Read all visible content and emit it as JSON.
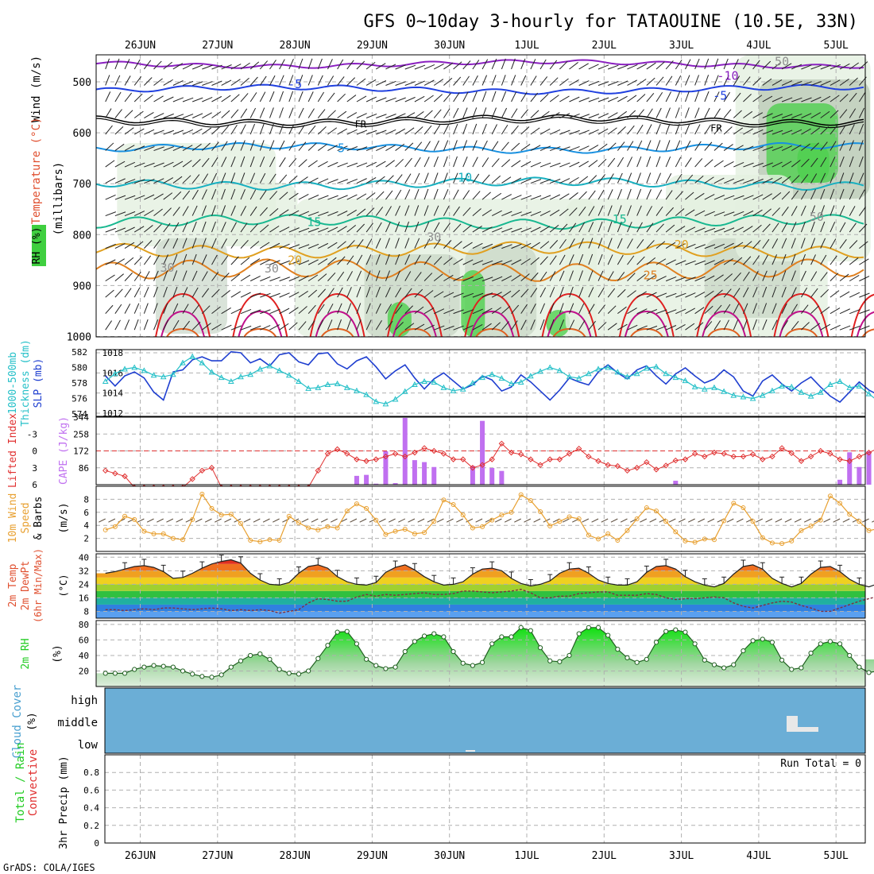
{
  "title": "GFS 0~10day 3-hourly for TATAOUINE (10.5E, 33N)",
  "credit": "GrADS: COLA/IGES",
  "dates": [
    "26JUN",
    "27JUN",
    "28JUN",
    "29JUN",
    "30JUN",
    "1JUL",
    "2JUL",
    "3JUL",
    "4JUL",
    "5JUL"
  ],
  "colors": {
    "panel_bg": "#ffffff",
    "cloud_bg": "#6baed6",
    "grid": "#b0b0b0",
    "slp": "#1f3fd0",
    "thickness": "#25c0c8",
    "lifted": "#e03030",
    "cape": "#c070f0",
    "wind10": "#e8a030",
    "rh": "#22cc22"
  },
  "chart_data": [
    {
      "type": "heatmap",
      "name": "upper_air",
      "ylabel_wind": "Wind (m/s)",
      "ylabel_temp": "Temperature (°C)",
      "ylabel_rh": "RH (%)",
      "ylabel_p": "(millibars)",
      "ylim": [
        1000,
        450
      ],
      "yticks": [
        500,
        600,
        700,
        800,
        900,
        1000
      ],
      "isotherm_labels": [
        {
          "text": "-10",
          "x": 7.6,
          "p": 488,
          "color": "#8a20c0"
        },
        {
          "text": "-5",
          "x": 2.0,
          "p": 505,
          "color": "#2040e0"
        },
        {
          "text": "-5",
          "x": 7.5,
          "p": 527,
          "color": "#2040e0"
        },
        {
          "text": "FR",
          "x": 2.85,
          "p": 582,
          "color": "#000000"
        },
        {
          "text": "FR",
          "x": 7.45,
          "p": 590,
          "color": "#000000"
        },
        {
          "text": "5",
          "x": 2.6,
          "p": 630,
          "color": "#1890e0"
        },
        {
          "text": "10",
          "x": 4.2,
          "p": 688,
          "color": "#18b0c0"
        },
        {
          "text": "15",
          "x": 2.25,
          "p": 775,
          "color": "#18b890"
        },
        {
          "text": "15",
          "x": 6.2,
          "p": 770,
          "color": "#18b890"
        },
        {
          "text": "20",
          "x": 2.0,
          "p": 850,
          "color": "#e0a020"
        },
        {
          "text": "20",
          "x": 7.0,
          "p": 820,
          "color": "#e0a020"
        },
        {
          "text": "25",
          "x": 6.6,
          "p": 880,
          "color": "#e08020"
        },
        {
          "text": "30",
          "x": 0.35,
          "p": 865,
          "color": "#909090"
        },
        {
          "text": "30",
          "x": 1.7,
          "p": 867,
          "color": "#909090"
        },
        {
          "text": "30",
          "x": 3.8,
          "p": 805,
          "color": "#909090"
        },
        {
          "text": "50",
          "x": 8.3,
          "p": 460,
          "color": "#909090"
        },
        {
          "text": "50",
          "x": 8.75,
          "p": 765,
          "color": "#909090"
        }
      ]
    },
    {
      "type": "line",
      "name": "thickness_slp",
      "ylabel_left": "1000-500mb Thickness (dm)",
      "ylabel_right": "SLP (mb)",
      "ylim_left": [
        574,
        582
      ],
      "ylim_right": [
        1012,
        1018
      ],
      "yticks_left": [
        574,
        576,
        578,
        580,
        582
      ],
      "yticks_right": [
        1012,
        1014,
        1016,
        1018
      ],
      "series": [
        {
          "name": "SLP",
          "axis": "right",
          "values": [
            1015.7,
            1014.7,
            1015.7,
            1016.1,
            1015.5,
            1014.1,
            1013.3,
            1016.1,
            1016.3,
            1017.3,
            1017.6,
            1017.2,
            1017.2,
            1018.1,
            1018.0,
            1017.0,
            1017.4,
            1016.7,
            1017.8,
            1018.0,
            1017.1,
            1016.8,
            1017.9,
            1018.0,
            1016.9,
            1016.4,
            1017.2,
            1017.6,
            1016.6,
            1015.4,
            1016.2,
            1016.8,
            1015.5,
            1014.4,
            1015.4,
            1016.0,
            1015.2,
            1014.4,
            1014.8,
            1015.7,
            1015.3,
            1014.2,
            1014.6,
            1015.8,
            1015.1,
            1014.2,
            1013.3,
            1014.3,
            1015.5,
            1015.1,
            1014.8,
            1016.1,
            1016.8,
            1016.0,
            1015.4,
            1016.3,
            1016.7,
            1015.7,
            1014.9,
            1015.9,
            1016.5,
            1015.7,
            1015.0,
            1015.4,
            1016.3,
            1015.6,
            1014.2,
            1013.7,
            1015.2,
            1015.8,
            1014.9,
            1014.2,
            1015.0,
            1015.6,
            1014.6,
            1013.7,
            1013.1,
            1014.1,
            1015.1,
            1014.3,
            1013.8,
            1014.9
          ]
        },
        {
          "name": "Thickness",
          "axis": "left",
          "values": [
            578.2,
            579.2,
            579.8,
            580.0,
            579.6,
            579.0,
            578.8,
            579.1,
            580.6,
            581.4,
            580.6,
            579.4,
            578.7,
            578.2,
            578.8,
            579.1,
            579.8,
            580.2,
            579.6,
            579.0,
            578.2,
            577.3,
            577.4,
            577.8,
            577.9,
            577.4,
            577.0,
            576.5,
            575.6,
            575.3,
            575.9,
            576.9,
            577.8,
            578.2,
            578.1,
            577.4,
            577.0,
            577.2,
            578.0,
            578.7,
            579.1,
            578.6,
            577.9,
            578.1,
            578.9,
            579.5,
            580.0,
            579.6,
            578.8,
            578.6,
            579.2,
            579.8,
            580.0,
            579.4,
            578.8,
            579.2,
            579.9,
            580.1,
            579.2,
            578.7,
            578.3,
            577.5,
            577.2,
            577.4,
            576.9,
            576.4,
            576.2,
            576.0,
            576.4,
            577.0,
            577.6,
            577.5,
            576.8,
            576.3,
            576.8,
            577.8,
            578.2,
            577.4,
            577.6,
            576.6,
            575.6,
            574.8
          ]
        }
      ]
    },
    {
      "type": "bar",
      "name": "cape_li",
      "ylabel_left": "Lifted Index",
      "ylabel_right": "CAPE (J/kg)",
      "yticks_left": [
        -3,
        0,
        3,
        6
      ],
      "ylim_left": [
        6,
        -6
      ],
      "yticks_right": [
        86,
        172,
        258,
        344
      ],
      "ylim_right": [
        0,
        344
      ],
      "series": [
        {
          "name": "Lifted Index",
          "values": [
            3.5,
            4.0,
            4.5,
            8,
            8,
            8,
            8,
            8,
            8,
            5.0,
            3.5,
            3.0,
            8,
            8,
            8,
            8,
            8,
            8,
            8,
            8,
            8,
            8,
            8,
            8,
            8,
            8,
            8,
            8,
            8,
            8,
            8,
            8,
            8,
            8,
            8,
            8,
            8,
            8,
            8,
            8,
            8,
            8,
            8,
            8,
            8,
            8,
            8,
            8,
            8,
            8,
            8,
            8,
            8,
            8,
            8,
            8,
            8,
            8,
            8,
            8,
            8,
            8,
            8,
            8,
            8,
            8,
            8,
            8,
            8,
            8,
            8,
            8,
            8,
            8,
            8,
            8,
            8,
            8,
            8,
            8,
            8,
            8
          ]
        },
        {
          "name": "CAPE",
          "values": [
            0,
            0,
            0,
            0,
            0,
            0,
            0,
            0,
            0,
            0,
            0,
            0,
            0,
            0,
            0,
            0,
            0,
            0,
            0,
            0,
            0,
            0,
            0,
            0,
            0,
            0,
            0,
            0,
            0,
            0,
            0,
            0,
            0,
            0,
            0,
            0,
            0,
            0,
            0,
            0,
            0,
            0,
            0,
            0,
            0,
            0,
            0,
            0,
            0,
            0,
            0,
            0,
            0,
            0,
            0,
            0,
            0,
            0,
            0,
            0,
            0,
            0,
            0,
            0,
            0,
            0,
            0,
            0,
            0,
            0,
            0,
            0,
            0,
            0,
            0,
            0,
            0,
            0,
            0,
            0,
            0,
            0
          ]
        }
      ]
    },
    {
      "type": "line",
      "name": "wind10m",
      "ylabel": "10m Wind Speed (m/s) & Barbs",
      "ylim": [
        0,
        10
      ],
      "yticks": [
        2,
        4,
        6,
        8
      ],
      "series": [
        {
          "name": "10m Wind Speed",
          "values": [
            3.3,
            3.8,
            5.4,
            4.9,
            3.1,
            2.7,
            2.7,
            2.0,
            1.8,
            4.9,
            8.8,
            6.6,
            5.6,
            5.7,
            4.3,
            1.7,
            1.5,
            1.8,
            1.7,
            5.4,
            4.4,
            3.6,
            3.3,
            3.8,
            3.6,
            6.2,
            7.3,
            6.6,
            4.8,
            2.6,
            3.1,
            3.4,
            2.7,
            2.9,
            4.6,
            7.9,
            7.2,
            5.6,
            3.6,
            3.8,
            4.8,
            5.6,
            6.0,
            8.7,
            7.8,
            6.1,
            3.9,
            4.6,
            5.3,
            5.0,
            2.5,
            1.9,
            2.7,
            1.7,
            3.2,
            5.0,
            6.7,
            6.2,
            4.6,
            3.0,
            1.6,
            1.4,
            1.9,
            1.8,
            4.7,
            7.4,
            6.7,
            4.6,
            2.1,
            1.3,
            1.2,
            1.6,
            3.2,
            3.9,
            4.8,
            8.5,
            7.4,
            5.7,
            4.6,
            3.2,
            3.5,
            4.1
          ]
        }
      ]
    },
    {
      "type": "area",
      "name": "temp2m",
      "ylabel": "2m Temp 2m DewPt (6hr Min/Max)",
      "ylim": [
        4,
        42
      ],
      "yticks": [
        8,
        16,
        24,
        32,
        40
      ],
      "series": [
        {
          "name": "2m Temp",
          "values": [
            30.5,
            31.5,
            33,
            34.5,
            35,
            34,
            31.5,
            27.5,
            28,
            30.5,
            33.5,
            36,
            37.5,
            38.5,
            36.5,
            30.5,
            26.5,
            24,
            23.5,
            25,
            30.5,
            34.5,
            35.5,
            33.5,
            28.5,
            25.5,
            24,
            23.5,
            25,
            31,
            34,
            35.5,
            32.5,
            28.5,
            25.5,
            23.5,
            24,
            25.5,
            30,
            33,
            33.5,
            32,
            27.5,
            24.5,
            23,
            24,
            26,
            30.5,
            33,
            33.5,
            30.5,
            26.5,
            24.5,
            23.5,
            23.5,
            25.5,
            31,
            34.5,
            35,
            33,
            28.5,
            25.5,
            23.5,
            22.5,
            24.5,
            30,
            34.5,
            35.5,
            33,
            27.5,
            24.5,
            22.5,
            24.5,
            30,
            34,
            34.5,
            31.5,
            27,
            24,
            22.5,
            24.5,
            24.5
          ]
        },
        {
          "name": "2m DewPt",
          "values": [
            9,
            9,
            8.5,
            9,
            9.5,
            9,
            10,
            10,
            9.5,
            9,
            9.5,
            10,
            9.5,
            8.5,
            9,
            8.5,
            9,
            8.5,
            7,
            8,
            9,
            13,
            15.5,
            15,
            14,
            14,
            16.5,
            18,
            17,
            18,
            17.5,
            18,
            18.5,
            19,
            18,
            18,
            18.5,
            20,
            20,
            19.5,
            19,
            19.5,
            20,
            21,
            19,
            16,
            16,
            17,
            17,
            18.5,
            19,
            19.5,
            19.5,
            17.5,
            17.5,
            17.5,
            18.5,
            18,
            16,
            15,
            15.5,
            15.5,
            16,
            16.5,
            16,
            13,
            11,
            10,
            11.5,
            13,
            14,
            13.5,
            11.5,
            10,
            8,
            8,
            10,
            12,
            14,
            15.5,
            17,
            17.5
          ]
        }
      ]
    },
    {
      "type": "area",
      "name": "rh2m",
      "ylabel": "2m RH (%)",
      "ylim": [
        0,
        85
      ],
      "yticks": [
        20,
        40,
        60,
        80
      ],
      "series": [
        {
          "name": "2m RH",
          "values": [
            17,
            17,
            17,
            22,
            25,
            27,
            26,
            25,
            20,
            16,
            13,
            12,
            15,
            25,
            33,
            40,
            42,
            35,
            22,
            17,
            16,
            20,
            36,
            53,
            70,
            71,
            55,
            35,
            27,
            23,
            25,
            45,
            58,
            65,
            68,
            64,
            45,
            30,
            27,
            31,
            55,
            64,
            64,
            76,
            72,
            50,
            33,
            32,
            40,
            68,
            76,
            76,
            66,
            48,
            37,
            31,
            35,
            57,
            71,
            73,
            70,
            55,
            34,
            28,
            24,
            28,
            46,
            59,
            61,
            57,
            34,
            22,
            24,
            43,
            55,
            58,
            55,
            40,
            25,
            18,
            20,
            35
          ]
        }
      ]
    },
    {
      "type": "heatmap",
      "name": "cloud_cover",
      "ylabel": "Cloud Cover (%)",
      "levels": [
        "high",
        "middle",
        "low"
      ]
    },
    {
      "type": "bar",
      "name": "precip",
      "ylabel_total": "Total / Rain",
      "ylabel_conv": "Convective",
      "ylabel": "3hr Precip (mm)",
      "ylim": [
        0,
        1.0
      ],
      "yticks": [
        "0",
        "0.2",
        "0.4",
        "0.6",
        "0.8"
      ],
      "run_total": "Run Total = 0",
      "values": [
        0,
        0,
        0,
        0,
        0,
        0,
        0,
        0,
        0,
        0,
        0,
        0,
        0,
        0,
        0,
        0,
        0,
        0,
        0,
        0,
        0,
        0,
        0,
        0,
        0,
        0,
        0,
        0,
        0,
        0,
        0,
        0,
        0,
        0,
        0,
        0,
        0,
        0,
        0,
        0,
        0,
        0,
        0,
        0,
        0,
        0,
        0,
        0,
        0,
        0,
        0,
        0,
        0,
        0,
        0,
        0,
        0,
        0,
        0,
        0,
        0,
        0,
        0,
        0,
        0,
        0,
        0,
        0,
        0,
        0,
        0,
        0,
        0,
        0,
        0,
        0,
        0,
        0,
        0,
        0,
        0,
        0
      ]
    }
  ]
}
